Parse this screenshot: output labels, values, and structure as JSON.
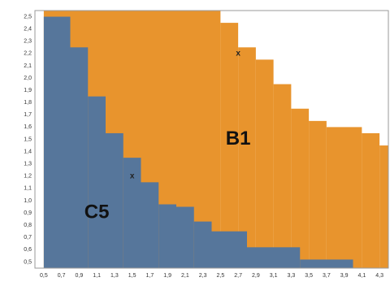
{
  "chart_data": {
    "type": "heatmap",
    "title": "",
    "xlabel": "",
    "ylabel": "",
    "x_ticks": [
      "0,5",
      "0,7",
      "0,9",
      "1,1",
      "1,3",
      "1,5",
      "1,7",
      "1,9",
      "2,1",
      "2,3",
      "2,5",
      "2,7",
      "2,9",
      "3,1",
      "3,3",
      "3,5",
      "3,7",
      "3,9",
      "4,1",
      "4,3"
    ],
    "y_ticks": [
      "2,5",
      "2,4",
      "2,3",
      "2,2",
      "2,1",
      "2,0",
      "1,9",
      "1,8",
      "1,7",
      "1,6",
      "1,5",
      "1,4",
      "1,3",
      "1,2",
      "1,1",
      "1,0",
      "0,9",
      "0,8",
      "0,7",
      "0,6",
      "0,5"
    ],
    "xlim": [
      0.5,
      4.3
    ],
    "ylim": [
      0.5,
      2.5
    ],
    "grid": false,
    "colors": {
      "C5": "#56769b",
      "B1": "#e8942d",
      "none": "#ffffff"
    },
    "regions": [
      {
        "label": "B1",
        "color_key": "B1",
        "label_at": {
          "x": 2.7,
          "y": 1.5
        }
      },
      {
        "label": "C5",
        "color_key": "C5",
        "label_at": {
          "x": 1.1,
          "y": 0.9
        }
      }
    ],
    "boundary_C5_B1": [
      {
        "x_from": 0.5,
        "x_to": 0.8,
        "y_max": 2.5
      },
      {
        "x_from": 0.8,
        "x_to": 1.0,
        "y_max": 2.25
      },
      {
        "x_from": 1.0,
        "x_to": 1.2,
        "y_max": 1.85
      },
      {
        "x_from": 1.2,
        "x_to": 1.4,
        "y_max": 1.55
      },
      {
        "x_from": 1.4,
        "x_to": 1.6,
        "y_max": 1.35
      },
      {
        "x_from": 1.6,
        "x_to": 1.8,
        "y_max": 1.15
      },
      {
        "x_from": 1.8,
        "x_to": 2.0,
        "y_max": 0.97
      },
      {
        "x_from": 2.0,
        "x_to": 2.2,
        "y_max": 0.95
      },
      {
        "x_from": 2.2,
        "x_to": 2.4,
        "y_max": 0.83
      },
      {
        "x_from": 2.4,
        "x_to": 2.8,
        "y_max": 0.75
      },
      {
        "x_from": 2.8,
        "x_to": 3.4,
        "y_max": 0.62
      },
      {
        "x_from": 3.4,
        "x_to": 4.0,
        "y_max": 0.52
      },
      {
        "x_from": 4.0,
        "x_to": 4.4,
        "y_max": 0.45
      }
    ],
    "boundary_B1_none": [
      {
        "x_from": 0.5,
        "x_to": 2.5,
        "y_max": 2.6
      },
      {
        "x_from": 2.5,
        "x_to": 2.7,
        "y_max": 2.45
      },
      {
        "x_from": 2.7,
        "x_to": 2.9,
        "y_max": 2.25
      },
      {
        "x_from": 2.9,
        "x_to": 3.1,
        "y_max": 2.15
      },
      {
        "x_from": 3.1,
        "x_to": 3.3,
        "y_max": 1.95
      },
      {
        "x_from": 3.3,
        "x_to": 3.5,
        "y_max": 1.75
      },
      {
        "x_from": 3.5,
        "x_to": 3.7,
        "y_max": 1.65
      },
      {
        "x_from": 3.7,
        "x_to": 4.1,
        "y_max": 1.6
      },
      {
        "x_from": 4.1,
        "x_to": 4.3,
        "y_max": 1.55
      },
      {
        "x_from": 4.3,
        "x_to": 4.4,
        "y_max": 1.45
      }
    ],
    "markers": [
      {
        "label": "x",
        "x": 2.7,
        "y": 2.2
      },
      {
        "label": "x",
        "x": 1.5,
        "y": 1.2
      }
    ]
  }
}
